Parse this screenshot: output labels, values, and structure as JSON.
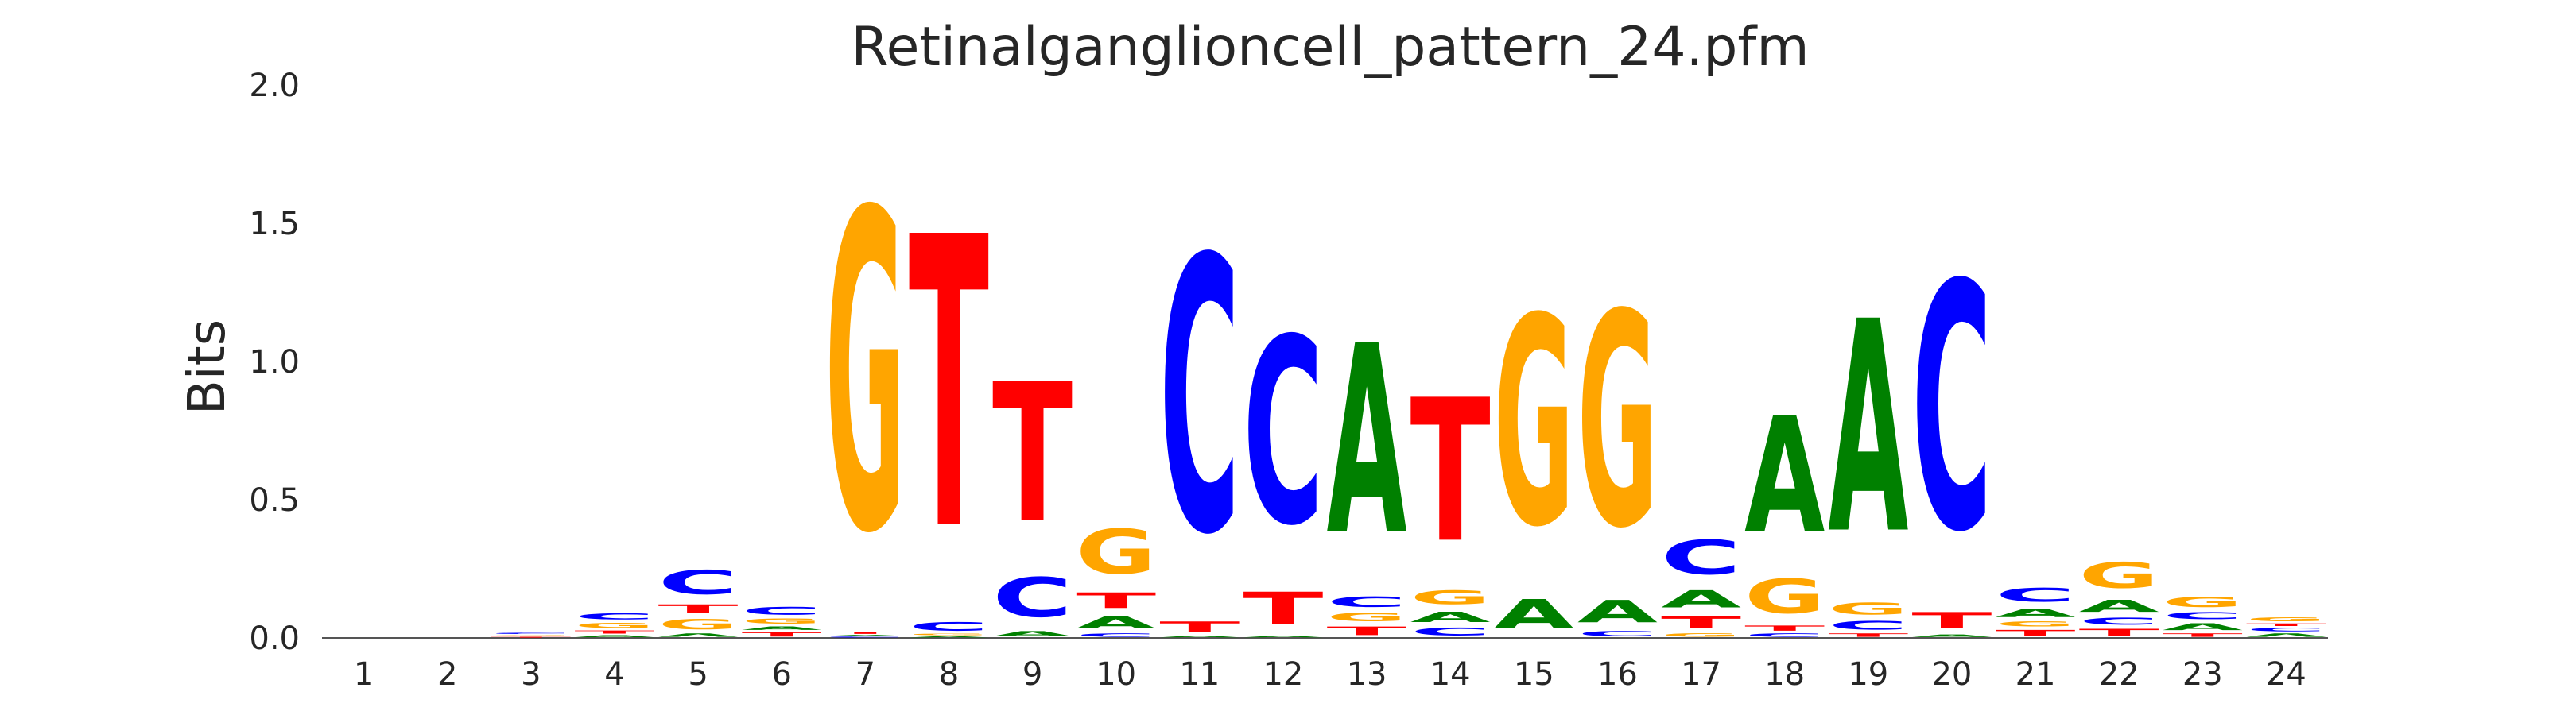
{
  "chart_data": {
    "type": "sequence-logo",
    "title": "Retinalganglioncell_pattern_24.pfm",
    "xlabel": "",
    "ylabel": "Bits",
    "ylim": [
      0,
      2.0
    ],
    "y_ticks": [
      "0.0",
      "0.5",
      "1.0",
      "1.5",
      "2.0"
    ],
    "y_tick_values": [
      0,
      0.5,
      1.0,
      1.5,
      2.0
    ],
    "grid": false,
    "colors": {
      "A": "#008000",
      "C": "#0000ff",
      "G": "#ffa500",
      "T": "#ff0000"
    },
    "positions": [
      {
        "pos": "1",
        "stack": []
      },
      {
        "pos": "2",
        "stack": []
      },
      {
        "pos": "3",
        "stack": [
          [
            "T",
            0.005
          ],
          [
            "A",
            0.004
          ],
          [
            "G",
            0.004
          ],
          [
            "C",
            0.007
          ]
        ]
      },
      {
        "pos": "4",
        "stack": [
          [
            "A",
            0.012
          ],
          [
            "T",
            0.018
          ],
          [
            "G",
            0.03
          ],
          [
            "C",
            0.035
          ]
        ]
      },
      {
        "pos": "5",
        "stack": [
          [
            "A",
            0.02
          ],
          [
            "G",
            0.06
          ],
          [
            "T",
            0.05
          ],
          [
            "C",
            0.14
          ]
        ]
      },
      {
        "pos": "6",
        "stack": [
          [
            "T",
            0.025
          ],
          [
            "A",
            0.02
          ],
          [
            "G",
            0.03
          ],
          [
            "C",
            0.045
          ]
        ]
      },
      {
        "pos": "7",
        "stack": [
          [
            "C",
            0.006
          ],
          [
            "A",
            0.006
          ],
          [
            "T",
            0.013
          ],
          [
            "G",
            1.85
          ]
        ]
      },
      {
        "pos": "8",
        "stack": [
          [
            "A",
            0.008
          ],
          [
            "G",
            0.008
          ],
          [
            "C",
            0.05
          ],
          [
            "T",
            1.69
          ]
        ]
      },
      {
        "pos": "9",
        "stack": [
          [
            "A",
            0.03
          ],
          [
            "C",
            0.23
          ],
          [
            "T",
            0.81
          ]
        ]
      },
      {
        "pos": "10",
        "stack": [
          [
            "C",
            0.02
          ],
          [
            "A",
            0.07
          ],
          [
            "T",
            0.09
          ],
          [
            "G",
            0.26
          ]
        ]
      },
      {
        "pos": "11",
        "stack": [
          [
            "A",
            0.01
          ],
          [
            "T",
            0.06
          ],
          [
            "C",
            1.59
          ]
        ]
      },
      {
        "pos": "12",
        "stack": [
          [
            "A",
            0.01
          ],
          [
            "T",
            0.19
          ],
          [
            "C",
            1.08
          ]
        ]
      },
      {
        "pos": "13",
        "stack": [
          [
            "T",
            0.05
          ],
          [
            "G",
            0.05
          ],
          [
            "C",
            0.06
          ],
          [
            "A",
            1.1
          ]
        ]
      },
      {
        "pos": "14",
        "stack": [
          [
            "C",
            0.045
          ],
          [
            "A",
            0.06
          ],
          [
            "G",
            0.08
          ],
          [
            "T",
            0.83
          ]
        ]
      },
      {
        "pos": "15",
        "stack": [
          [
            "A",
            0.17
          ],
          [
            "G",
            1.21
          ]
        ]
      },
      {
        "pos": "16",
        "stack": [
          [
            "C",
            0.03
          ],
          [
            "A",
            0.13
          ],
          [
            "G",
            1.24
          ]
        ]
      },
      {
        "pos": "17",
        "stack": [
          [
            "G",
            0.02
          ],
          [
            "T",
            0.07
          ],
          [
            "A",
            0.1
          ],
          [
            "C",
            0.2
          ]
        ]
      },
      {
        "pos": "18",
        "stack": [
          [
            "C",
            0.02
          ],
          [
            "T",
            0.03
          ],
          [
            "G",
            0.2
          ],
          [
            "A",
            0.67
          ]
        ]
      },
      {
        "pos": "19",
        "stack": [
          [
            "T",
            0.02
          ],
          [
            "C",
            0.05
          ],
          [
            "G",
            0.07
          ],
          [
            "A",
            1.23
          ]
        ]
      },
      {
        "pos": "20",
        "stack": [
          [
            "A",
            0.015
          ],
          [
            "T",
            0.095
          ],
          [
            "C",
            1.43
          ]
        ]
      },
      {
        "pos": "21",
        "stack": [
          [
            "T",
            0.035
          ],
          [
            "G",
            0.03
          ],
          [
            "A",
            0.05
          ],
          [
            "C",
            0.08
          ]
        ]
      },
      {
        "pos": "22",
        "stack": [
          [
            "T",
            0.04
          ],
          [
            "C",
            0.04
          ],
          [
            "A",
            0.07
          ],
          [
            "G",
            0.15
          ]
        ]
      },
      {
        "pos": "23",
        "stack": [
          [
            "T",
            0.02
          ],
          [
            "A",
            0.04
          ],
          [
            "C",
            0.04
          ],
          [
            "G",
            0.06
          ]
        ]
      },
      {
        "pos": "24",
        "stack": [
          [
            "A",
            0.02
          ],
          [
            "C",
            0.02
          ],
          [
            "T",
            0.015
          ],
          [
            "G",
            0.025
          ]
        ]
      }
    ]
  }
}
